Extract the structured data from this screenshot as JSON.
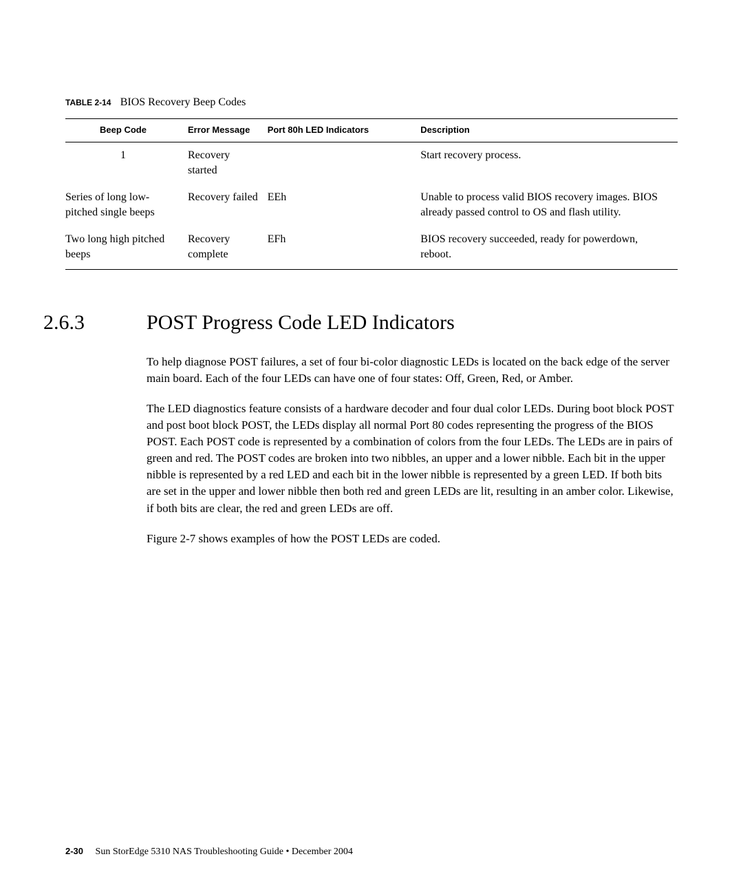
{
  "table": {
    "label_prefix": "TABLE 2-14",
    "label_title": "BIOS Recovery Beep Codes",
    "headers": {
      "beep": "Beep Code",
      "error": "Error Message",
      "port": "Port 80h LED Indicators",
      "desc": "Description"
    },
    "rows": [
      {
        "beep": "1",
        "error": "Recovery started",
        "port": "",
        "desc": "Start recovery process."
      },
      {
        "beep": "Series of long low-pitched single beeps",
        "error": "Recovery failed",
        "port": "EEh",
        "desc": "Unable to process valid BIOS recovery images. BIOS already passed control to OS and flash utility."
      },
      {
        "beep": "Two long high pitched beeps",
        "error": "Recovery complete",
        "port": "EFh",
        "desc": "BIOS recovery succeeded, ready for powerdown, reboot."
      }
    ]
  },
  "section": {
    "number": "2.6.3",
    "title": "POST Progress Code LED Indicators"
  },
  "paragraphs": {
    "p1": "To help diagnose POST failures, a set of four bi-color diagnostic LEDs is located on the back edge of the server main board. Each of the four LEDs can have one of four states: Off, Green, Red, or Amber.",
    "p2": "The LED diagnostics feature consists of a hardware decoder and four dual color LEDs. During boot block POST and post boot block POST, the LEDs display all normal Port 80 codes representing the progress of the BIOS POST. Each POST code is represented by a combination of colors from the four LEDs. The LEDs are in pairs of green and red. The POST codes are broken into two nibbles, an upper and a lower nibble. Each bit in the upper nibble is represented by a red LED and each bit in the lower nibble is represented by a green LED. If both bits are set in the upper and lower nibble then both red and green LEDs are lit, resulting in an amber color. Likewise, if both bits are clear, the red and green LEDs are off.",
    "p3": "Figure 2-7 shows examples of how the POST LEDs are coded."
  },
  "footer": {
    "pagenum": "2-30",
    "text": "Sun StorEdge 5310 NAS Troubleshooting Guide • December 2004"
  }
}
